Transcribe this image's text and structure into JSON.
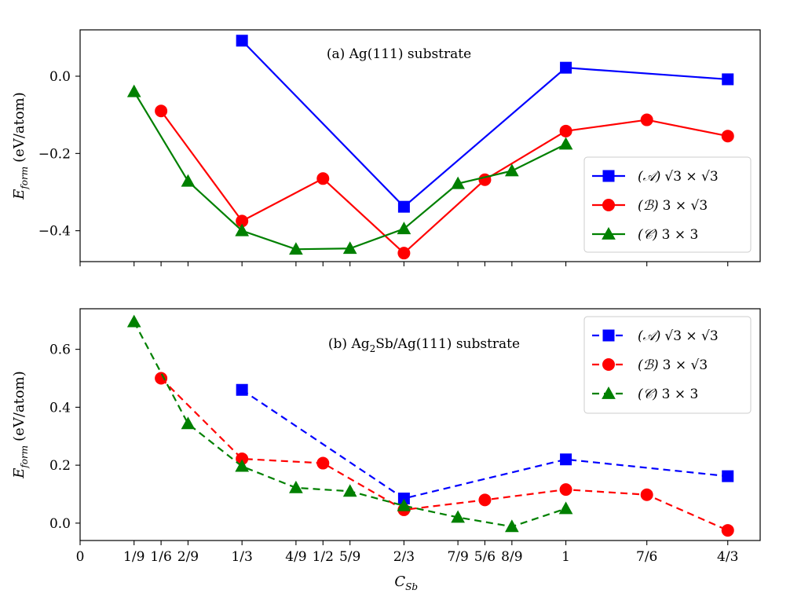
{
  "chart_data": [
    {
      "panel": "top",
      "type": "line",
      "annotation": "(a) Ag(111) substrate",
      "ylabel": "E_form (eV/atom)",
      "ylabel_base": "E",
      "ylabel_sub": "form",
      "ylabel_unit": "(eV/atom)",
      "xlim": [
        0,
        1.4
      ],
      "ylim": [
        -0.48,
        0.12
      ],
      "yticks": [
        0.0,
        -0.2,
        -0.4
      ],
      "ytick_labels": [
        "0.0",
        "−0.2",
        "−0.4"
      ],
      "legend_position": "lower-right",
      "series": [
        {
          "name": "(A) √3×√3",
          "label_prefix": "(𝒜)",
          "label_math": "√3 × √3",
          "color": "#0000ff",
          "marker": "square",
          "linestyle": "solid",
          "x": [
            0.3333,
            0.6667,
            1.0,
            1.3333
          ],
          "values": [
            0.092,
            -0.338,
            0.022,
            -0.008
          ]
        },
        {
          "name": "(B) 3×√3",
          "label_prefix": "(ℬ)",
          "label_math": "3 × √3",
          "color": "#ff0000",
          "marker": "circle",
          "linestyle": "solid",
          "x": [
            0.1667,
            0.3333,
            0.5,
            0.6667,
            0.8333,
            1.0,
            1.1667,
            1.3333
          ],
          "values": [
            -0.09,
            -0.375,
            -0.265,
            -0.458,
            -0.268,
            -0.142,
            -0.113,
            -0.155
          ]
        },
        {
          "name": "(C) 3×3",
          "label_prefix": "(𝒞)",
          "label_math": "3 × 3",
          "color": "#008000",
          "marker": "triangle",
          "linestyle": "solid",
          "x": [
            0.1111,
            0.2222,
            0.3333,
            0.4444,
            0.5556,
            0.6667,
            0.7778,
            0.8889,
            1.0
          ],
          "values": [
            -0.04,
            -0.272,
            -0.4,
            -0.448,
            -0.446,
            -0.395,
            -0.278,
            -0.245,
            -0.176
          ]
        }
      ]
    },
    {
      "panel": "bottom",
      "type": "line",
      "annotation_prefix": "(b) Ag",
      "annotation_sub": "2",
      "annotation_suffix": "Sb/Ag(111) substrate",
      "ylabel": "E_form (eV/atom)",
      "ylabel_base": "E",
      "ylabel_sub": "form",
      "ylabel_unit": "(eV/atom)",
      "xlabel": "C_Sb",
      "xlabel_base": "C",
      "xlabel_sub": "Sb",
      "xlim": [
        0,
        1.4
      ],
      "ylim": [
        -0.06,
        0.74
      ],
      "yticks": [
        0.0,
        0.2,
        0.4,
        0.6
      ],
      "ytick_labels": [
        "0.0",
        "0.2",
        "0.4",
        "0.6"
      ],
      "xticks": [
        0,
        0.1111,
        0.1667,
        0.2222,
        0.3333,
        0.4444,
        0.5,
        0.5556,
        0.6667,
        0.7778,
        0.8333,
        0.8889,
        1.0,
        1.1667,
        1.3333
      ],
      "xtick_labels": [
        "0",
        "1/9",
        "1/6",
        "2/9",
        "1/3",
        "4/9",
        "1/2",
        "5/9",
        "2/3",
        "7/9",
        "5/6",
        "8/9",
        "1",
        "7/6",
        "4/3"
      ],
      "legend_position": "top-right",
      "series": [
        {
          "name": "(A) √3×√3",
          "label_prefix": "(𝒜)",
          "label_math": "√3 × √3",
          "color": "#0000ff",
          "marker": "square",
          "linestyle": "dashed",
          "x": [
            0.3333,
            0.6667,
            1.0,
            1.3333
          ],
          "values": [
            0.46,
            0.085,
            0.22,
            0.162
          ]
        },
        {
          "name": "(B) 3×√3",
          "label_prefix": "(ℬ)",
          "label_math": "3 × √3",
          "color": "#ff0000",
          "marker": "circle",
          "linestyle": "dashed",
          "x": [
            0.1667,
            0.3333,
            0.5,
            0.6667,
            0.8333,
            1.0,
            1.1667,
            1.3333
          ],
          "values": [
            0.5,
            0.222,
            0.207,
            0.046,
            0.08,
            0.116,
            0.098,
            -0.025
          ]
        },
        {
          "name": "(C) 3×3",
          "label_prefix": "(𝒞)",
          "label_math": "3 × 3",
          "color": "#008000",
          "marker": "triangle",
          "linestyle": "dashed",
          "x": [
            0.1111,
            0.2222,
            0.3333,
            0.4444,
            0.5556,
            0.6667,
            0.7778,
            0.8889,
            1.0
          ],
          "values": [
            0.695,
            0.343,
            0.196,
            0.122,
            0.11,
            0.06,
            0.02,
            -0.012,
            0.05
          ]
        }
      ]
    }
  ]
}
